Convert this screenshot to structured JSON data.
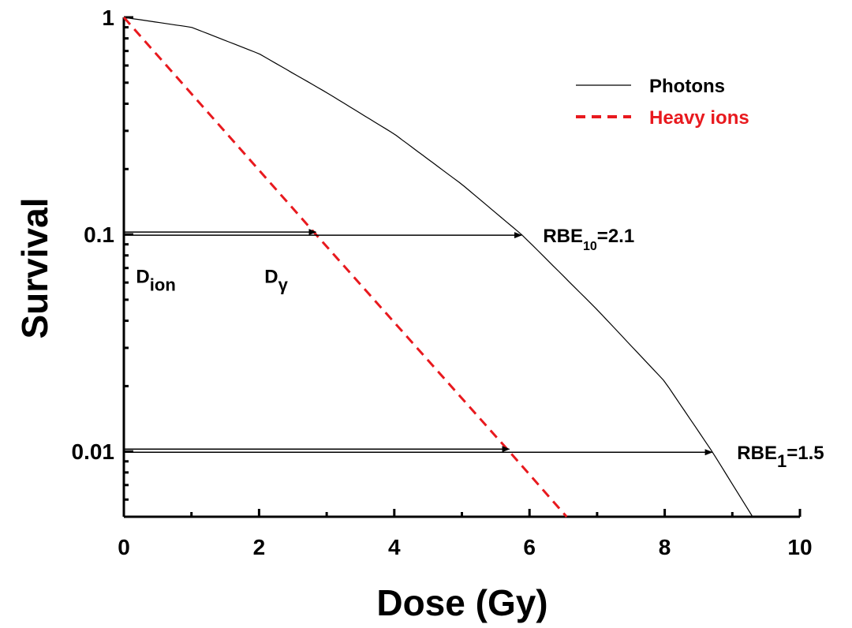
{
  "chart_data": {
    "type": "line",
    "xlabel": "Dose (Gy)",
    "ylabel": "Survival",
    "xlim": [
      0,
      10
    ],
    "ylim": [
      0.005,
      1
    ],
    "y_scale": "log",
    "x_ticks": [
      "0",
      "2",
      "4",
      "6",
      "8",
      "10"
    ],
    "y_ticks": [
      "0.01",
      "0.1",
      "1"
    ],
    "grid": false,
    "legend_position": "top-right",
    "series": [
      {
        "name": "Photons",
        "color": "#000000",
        "style": "solid",
        "x": [
          0,
          1,
          2,
          3,
          4,
          5,
          5.88,
          6,
          7,
          8,
          8.7,
          9.3
        ],
        "y": [
          1,
          0.9,
          0.68,
          0.45,
          0.29,
          0.17,
          0.1,
          0.092,
          0.045,
          0.021,
          0.01,
          0.005
        ]
      },
      {
        "name": "Heavy ions",
        "color": "#e8191e",
        "style": "dashed",
        "x": [
          0,
          2.84,
          5.7,
          6.55
        ],
        "y": [
          1,
          0.1,
          0.01,
          0.005
        ]
      }
    ],
    "arrows": [
      {
        "level": 0.1,
        "tip1_x": 2.84,
        "tip2_x": 5.88
      },
      {
        "level": 0.01,
        "tip1_x": 5.7,
        "tip2_x": 8.7
      }
    ],
    "annotations": [
      {
        "id": "d-ion",
        "main": "D",
        "sub": "ion",
        "x": 0.18,
        "y": 0.065
      },
      {
        "id": "d-gamma",
        "main": "D",
        "sub": "γ",
        "x": 2.08,
        "y": 0.065
      },
      {
        "id": "rbe10",
        "main": "RBE",
        "sub": "10",
        "rest": "=2.1",
        "x": 6.2,
        "y": 0.1
      },
      {
        "id": "rbe1",
        "main": "RBE",
        "sub": "1",
        "rest": "=1.5",
        "x": 9.07,
        "y": 0.01
      }
    ]
  }
}
